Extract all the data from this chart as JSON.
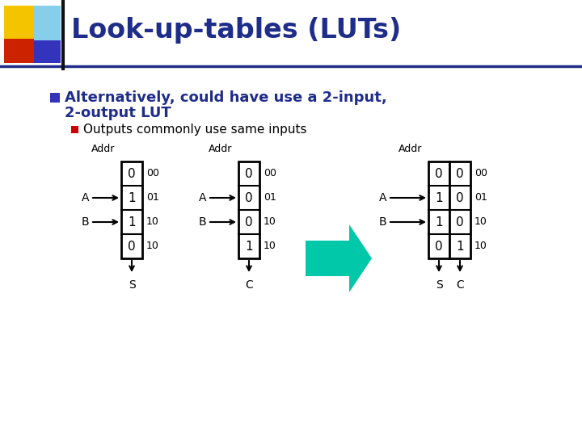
{
  "title": "Look-up-tables (LUTs)",
  "title_color": "#1F2D8A",
  "bg_color": "#FFFFFF",
  "bullet1_line1": "Alternatively, could have use a 2-input,",
  "bullet1_line2": "2-output LUT",
  "bullet1_color": "#1F2D8A",
  "bullet1_square_color": "#3333BB",
  "bullet2": "Outputs commonly use same inputs",
  "bullet2_color": "#000000",
  "bullet2_square_color": "#CC0000",
  "lut1_values": [
    "0",
    "1",
    "1",
    "0"
  ],
  "lut1_label": "S",
  "lut1_addr_labels": [
    "00",
    "01",
    "10",
    "10"
  ],
  "lut2_values": [
    "0",
    "0",
    "0",
    "1"
  ],
  "lut2_label": "C",
  "lut2_addr_labels": [
    "00",
    "01",
    "10",
    "10"
  ],
  "lut3_col1_values": [
    "0",
    "1",
    "1",
    "0"
  ],
  "lut3_col2_values": [
    "0",
    "0",
    "0",
    "1"
  ],
  "lut3_label1": "S",
  "lut3_label2": "C",
  "lut3_addr_labels": [
    "00",
    "01",
    "10",
    "10"
  ],
  "arrow_color": "#00C8A8",
  "header_line_color": "#1F2D8A",
  "addr_label": "Addr",
  "input_A": "A",
  "input_B": "B",
  "sq1_color": "#F5C400",
  "sq2_color": "#CC2200",
  "sq3_color": "#3333BB",
  "sq4_color": "#87CEEB"
}
